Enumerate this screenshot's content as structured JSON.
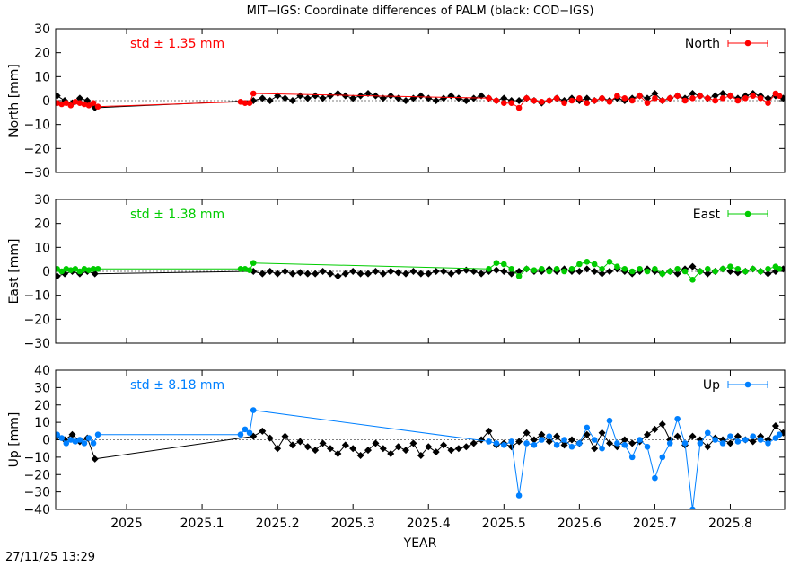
{
  "title": "MIT−IGS: Coordinate differences of PALM (black: COD−IGS)",
  "footer": "27/11/25 13:29",
  "chart_data": {
    "type": "scatter",
    "title": "MIT−IGS: Coordinate differences of PALM (black: COD−IGS)",
    "xlabel": "YEAR",
    "xlim": [
      2024.906,
      2025.872
    ],
    "xticks": [
      2025,
      2025.1,
      2025.2,
      2025.3,
      2025.4,
      2025.5,
      2025.6,
      2025.7,
      2025.8
    ],
    "xtick_labels": [
      "2025",
      "2025.1",
      "2025.2",
      "2025.3",
      "2025.4",
      "2025.5",
      "2025.6",
      "2025.7",
      "2025.8"
    ],
    "panels": [
      {
        "name": "North",
        "ylabel": "North [mm]",
        "ylim": [
          -30,
          30
        ],
        "yticks": [
          30,
          20,
          10,
          0,
          -10,
          -20,
          -30
        ],
        "std_label": "std ± 1.35 mm",
        "legend": "North",
        "color": "#ff0000",
        "series": [
          {
            "name": "MIT−IGS",
            "color": "#ff0000",
            "x": [
              2024.908,
              2024.914,
              2024.92,
              2024.926,
              2024.932,
              2024.938,
              2024.944,
              2024.95,
              2024.956,
              2024.962,
              2025.151,
              2025.157,
              2025.163,
              2025.168,
              2025.48,
              2025.49,
              2025.5,
              2025.51,
              2025.52,
              2025.53,
              2025.54,
              2025.55,
              2025.56,
              2025.57,
              2025.58,
              2025.59,
              2025.6,
              2025.61,
              2025.62,
              2025.63,
              2025.64,
              2025.65,
              2025.66,
              2025.67,
              2025.68,
              2025.69,
              2025.7,
              2025.71,
              2025.72,
              2025.73,
              2025.74,
              2025.75,
              2025.76,
              2025.77,
              2025.78,
              2025.79,
              2025.8,
              2025.81,
              2025.82,
              2025.83,
              2025.84,
              2025.85,
              2025.86,
              2025.865
            ],
            "y": [
              -1,
              -1.5,
              -1,
              -2,
              -0.5,
              -1,
              -1.5,
              -2,
              -1,
              -2.5,
              -0.5,
              -1,
              -1,
              3,
              1,
              0,
              -1,
              -1,
              -3,
              1,
              0,
              -0.5,
              0,
              1,
              -1,
              0,
              1,
              -1,
              0,
              1,
              -0.5,
              2,
              1,
              0,
              2,
              -1,
              1,
              0,
              1,
              2,
              0,
              1,
              2,
              1,
              0,
              1,
              2,
              0,
              1,
              2,
              1,
              -1,
              3,
              2
            ]
          },
          {
            "name": "COD−IGS",
            "color": "#000000",
            "x": [
              2024.908,
              2024.918,
              2024.928,
              2024.938,
              2024.948,
              2024.958,
              2025.168,
              2025.18,
              2025.19,
              2025.2,
              2025.21,
              2025.22,
              2025.23,
              2025.24,
              2025.25,
              2025.26,
              2025.27,
              2025.28,
              2025.29,
              2025.3,
              2025.31,
              2025.32,
              2025.33,
              2025.34,
              2025.35,
              2025.36,
              2025.37,
              2025.38,
              2025.39,
              2025.4,
              2025.41,
              2025.42,
              2025.43,
              2025.44,
              2025.45,
              2025.46,
              2025.47,
              2025.48,
              2025.49,
              2025.5,
              2025.51,
              2025.52,
              2025.53,
              2025.54,
              2025.55,
              2025.56,
              2025.57,
              2025.58,
              2025.59,
              2025.6,
              2025.61,
              2025.62,
              2025.63,
              2025.64,
              2025.65,
              2025.66,
              2025.67,
              2025.68,
              2025.69,
              2025.7,
              2025.71,
              2025.72,
              2025.73,
              2025.74,
              2025.75,
              2025.76,
              2025.77,
              2025.78,
              2025.79,
              2025.8,
              2025.81,
              2025.82,
              2025.83,
              2025.84,
              2025.85,
              2025.86,
              2025.87
            ],
            "y": [
              2,
              0,
              -1,
              1,
              0,
              -3,
              0,
              1,
              0,
              2,
              1,
              0,
              2,
              1,
              2,
              1,
              2,
              3,
              2,
              1,
              2,
              3,
              2,
              1,
              2,
              1,
              0,
              1,
              2,
              1,
              0,
              1,
              2,
              1,
              0,
              1,
              2,
              1,
              0,
              1,
              0,
              0,
              1,
              0,
              -1,
              0,
              1,
              0,
              1,
              0,
              1,
              0,
              1,
              0,
              1,
              0,
              1,
              2,
              1,
              3,
              0,
              1,
              2,
              1,
              3,
              2,
              1,
              2,
              3,
              2,
              1,
              2,
              3,
              2,
              1,
              2,
              1
            ]
          }
        ]
      },
      {
        "name": "East",
        "ylabel": "East [mm]",
        "ylim": [
          -30,
          30
        ],
        "yticks": [
          30,
          20,
          10,
          0,
          -10,
          -20,
          -30
        ],
        "std_label": "std ± 1.38 mm",
        "legend": "East",
        "color": "#00cc00",
        "series": [
          {
            "name": "MIT−IGS",
            "color": "#00cc00",
            "x": [
              2024.908,
              2024.914,
              2024.92,
              2024.926,
              2024.932,
              2024.938,
              2024.944,
              2024.95,
              2024.956,
              2024.962,
              2025.151,
              2025.157,
              2025.163,
              2025.168,
              2025.48,
              2025.49,
              2025.5,
              2025.51,
              2025.52,
              2025.53,
              2025.54,
              2025.55,
              2025.56,
              2025.57,
              2025.58,
              2025.59,
              2025.6,
              2025.61,
              2025.62,
              2025.63,
              2025.64,
              2025.65,
              2025.66,
              2025.67,
              2025.68,
              2025.69,
              2025.7,
              2025.71,
              2025.72,
              2025.73,
              2025.74,
              2025.75,
              2025.76,
              2025.77,
              2025.78,
              2025.79,
              2025.8,
              2025.81,
              2025.82,
              2025.83,
              2025.84,
              2025.85,
              2025.86,
              2025.865
            ],
            "y": [
              1,
              0,
              1,
              0.5,
              1,
              0,
              1,
              0.5,
              1,
              1,
              1,
              1,
              0.5,
              3.5,
              1,
              3.5,
              3,
              1,
              -2,
              1,
              0.5,
              1,
              0,
              1,
              0,
              1,
              3,
              4,
              3,
              1,
              4,
              2,
              1,
              0,
              1,
              0,
              1,
              -1,
              0,
              1,
              0,
              -3.5,
              0,
              1,
              0,
              1,
              2,
              1,
              0,
              1,
              0,
              1,
              2,
              1
            ]
          },
          {
            "name": "COD−IGS",
            "color": "#000000",
            "x": [
              2024.908,
              2024.918,
              2024.928,
              2024.938,
              2024.948,
              2024.958,
              2025.168,
              2025.18,
              2025.19,
              2025.2,
              2025.21,
              2025.22,
              2025.23,
              2025.24,
              2025.25,
              2025.26,
              2025.27,
              2025.28,
              2025.29,
              2025.3,
              2025.31,
              2025.32,
              2025.33,
              2025.34,
              2025.35,
              2025.36,
              2025.37,
              2025.38,
              2025.39,
              2025.4,
              2025.41,
              2025.42,
              2025.43,
              2025.44,
              2025.45,
              2025.46,
              2025.47,
              2025.48,
              2025.49,
              2025.5,
              2025.51,
              2025.52,
              2025.53,
              2025.54,
              2025.55,
              2025.56,
              2025.57,
              2025.58,
              2025.59,
              2025.6,
              2025.61,
              2025.62,
              2025.63,
              2025.64,
              2025.65,
              2025.66,
              2025.67,
              2025.68,
              2025.69,
              2025.7,
              2025.71,
              2025.72,
              2025.73,
              2025.74,
              2025.75,
              2025.76,
              2025.77,
              2025.78,
              2025.79,
              2025.8,
              2025.81,
              2025.82,
              2025.83,
              2025.84,
              2025.85,
              2025.86,
              2025.87
            ],
            "y": [
              -2,
              -1,
              0,
              -1,
              0,
              -1,
              0,
              -1,
              0,
              -1,
              0,
              -1,
              -0.5,
              -1,
              -1,
              0,
              -1,
              -2,
              -1,
              0,
              -1,
              -1,
              0,
              -1,
              0,
              -0.5,
              -1,
              0,
              -1,
              -1,
              0,
              0,
              -1,
              0,
              0.5,
              0,
              -1,
              0,
              0.5,
              0,
              -1,
              0,
              1,
              0,
              0,
              1,
              0,
              1,
              0,
              0,
              1,
              0,
              -1,
              0,
              1,
              0,
              -1,
              0,
              1,
              0,
              -1,
              0,
              -1,
              1,
              2,
              0,
              -1,
              0,
              1,
              0,
              -0.5,
              0,
              1,
              0,
              -1,
              0,
              1
            ]
          }
        ]
      },
      {
        "name": "Up",
        "ylabel": "Up [mm]",
        "ylim": [
          -40,
          40
        ],
        "yticks": [
          40,
          30,
          20,
          10,
          0,
          -10,
          -20,
          -30,
          -40
        ],
        "std_label": "std ± 8.18 mm",
        "legend": "Up",
        "color": "#0080ff",
        "series": [
          {
            "name": "MIT−IGS",
            "color": "#0080ff",
            "x": [
              2024.908,
              2024.914,
              2024.92,
              2024.926,
              2024.932,
              2024.938,
              2024.944,
              2024.95,
              2024.956,
              2024.962,
              2025.151,
              2025.157,
              2025.163,
              2025.168,
              2025.48,
              2025.49,
              2025.5,
              2025.51,
              2025.52,
              2025.53,
              2025.54,
              2025.55,
              2025.56,
              2025.57,
              2025.58,
              2025.59,
              2025.6,
              2025.61,
              2025.62,
              2025.63,
              2025.64,
              2025.65,
              2025.66,
              2025.67,
              2025.68,
              2025.69,
              2025.7,
              2025.71,
              2025.72,
              2025.73,
              2025.74,
              2025.75,
              2025.76,
              2025.77,
              2025.78,
              2025.79,
              2025.8,
              2025.81,
              2025.82,
              2025.83,
              2025.84,
              2025.85,
              2025.86,
              2025.865
            ],
            "y": [
              3,
              1,
              -2,
              0,
              -1,
              0,
              -2,
              1,
              -2,
              3,
              3,
              6,
              4,
              17,
              -1,
              -2,
              -3,
              -1,
              -32,
              -2,
              -3,
              0,
              2,
              -3,
              0,
              -4,
              -2,
              7,
              0,
              -5,
              11,
              -2,
              -3,
              -10,
              0,
              -4,
              -22,
              -10,
              -2,
              12,
              -2,
              -40,
              -2,
              4,
              0,
              -2,
              2,
              -1,
              0,
              2,
              0,
              -2,
              1,
              3
            ]
          },
          {
            "name": "COD−IGS",
            "color": "#000000",
            "x": [
              2024.908,
              2024.918,
              2024.928,
              2024.938,
              2024.948,
              2024.958,
              2025.168,
              2025.18,
              2025.19,
              2025.2,
              2025.21,
              2025.22,
              2025.23,
              2025.24,
              2025.25,
              2025.26,
              2025.27,
              2025.28,
              2025.29,
              2025.3,
              2025.31,
              2025.32,
              2025.33,
              2025.34,
              2025.35,
              2025.36,
              2025.37,
              2025.38,
              2025.39,
              2025.4,
              2025.41,
              2025.42,
              2025.43,
              2025.44,
              2025.45,
              2025.46,
              2025.47,
              2025.48,
              2025.49,
              2025.5,
              2025.51,
              2025.52,
              2025.53,
              2025.54,
              2025.55,
              2025.56,
              2025.57,
              2025.58,
              2025.59,
              2025.6,
              2025.61,
              2025.62,
              2025.63,
              2025.64,
              2025.65,
              2025.66,
              2025.67,
              2025.68,
              2025.69,
              2025.7,
              2025.71,
              2025.72,
              2025.73,
              2025.74,
              2025.75,
              2025.76,
              2025.77,
              2025.78,
              2025.79,
              2025.8,
              2025.81,
              2025.82,
              2025.83,
              2025.84,
              2025.85,
              2025.86,
              2025.87
            ],
            "y": [
              2,
              0,
              3,
              -1,
              1,
              -11,
              2,
              5,
              1,
              -5,
              2,
              -3,
              -1,
              -4,
              -6,
              -2,
              -5,
              -8,
              -3,
              -5,
              -9,
              -6,
              -2,
              -5,
              -8,
              -4,
              -6,
              -2,
              -9,
              -4,
              -7,
              -3,
              -6,
              -5,
              -4,
              -2,
              0,
              5,
              -3,
              -2,
              -4,
              -1,
              4,
              0,
              3,
              -1,
              2,
              -3,
              0,
              -2,
              3,
              -5,
              4,
              -2,
              -4,
              0,
              -2,
              -1,
              3,
              6,
              9,
              0,
              2,
              -3,
              2,
              0,
              -4,
              1,
              0,
              -2,
              2,
              0,
              -1,
              2,
              0,
              8,
              4
            ]
          }
        ]
      }
    ]
  }
}
